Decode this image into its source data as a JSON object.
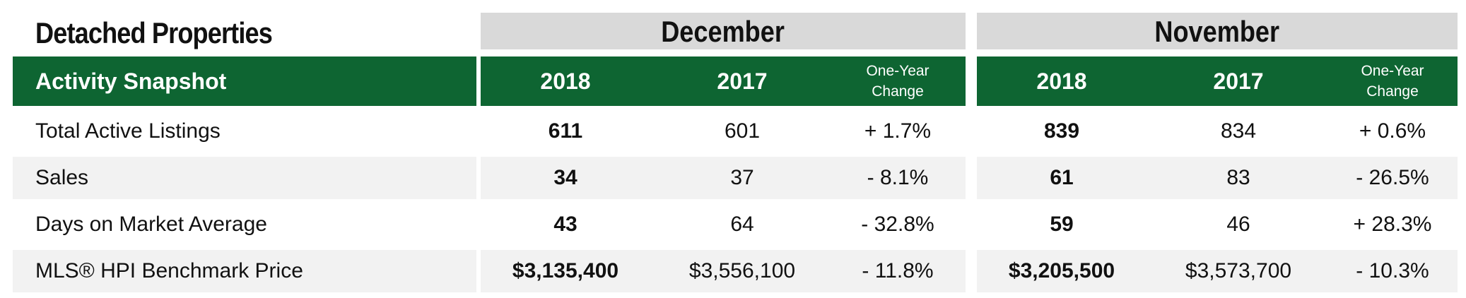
{
  "title": "Detached Properties",
  "snapshot_label": "Activity Snapshot",
  "months": [
    {
      "name": "December",
      "year_a": "2018",
      "year_b": "2017",
      "change_line1": "One-Year",
      "change_line2": "Change"
    },
    {
      "name": "November",
      "year_a": "2018",
      "year_b": "2017",
      "change_line1": "One-Year",
      "change_line2": "Change"
    }
  ],
  "rows": [
    {
      "label": "Total Active Listings",
      "dec_2018": "611",
      "dec_2017": "601",
      "dec_change": "+ 1.7%",
      "nov_2018": "839",
      "nov_2017": "834",
      "nov_change": "+ 0.6%"
    },
    {
      "label": "Sales",
      "dec_2018": "34",
      "dec_2017": "37",
      "dec_change": "- 8.1%",
      "nov_2018": "61",
      "nov_2017": "83",
      "nov_change": "- 26.5%"
    },
    {
      "label": "Days on Market Average",
      "dec_2018": "43",
      "dec_2017": "64",
      "dec_change": "- 32.8%",
      "nov_2018": "59",
      "nov_2017": "46",
      "nov_change": "+ 28.3%"
    },
    {
      "label": "MLS® HPI Benchmark Price",
      "dec_2018": "$3,135,400",
      "dec_2017": "$3,556,100",
      "dec_change": "- 11.8%",
      "nov_2018": "$3,205,500",
      "nov_2017": "$3,573,700",
      "nov_change": "- 10.3%"
    }
  ],
  "colors": {
    "header_green": "#0e6532",
    "month_gray": "#d9d9d9",
    "row_stripe": "#f2f2f2"
  }
}
